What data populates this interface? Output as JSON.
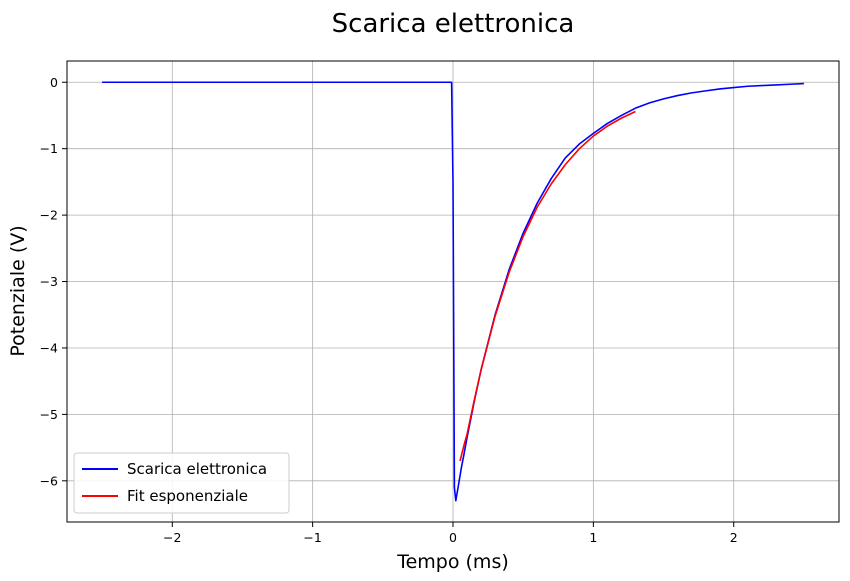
{
  "chart_data": {
    "type": "line",
    "title": "Scarica elettronica",
    "xlabel": "Tempo (ms)",
    "ylabel": "Potenziale (V)",
    "xlim": [
      -2.75,
      2.75
    ],
    "ylim": [
      -6.62,
      0.32
    ],
    "xticks": [
      -2,
      -1,
      0,
      1,
      2
    ],
    "xtick_labels": [
      "−2",
      "−1",
      "0",
      "1",
      "2"
    ],
    "yticks": [
      0,
      -1,
      -2,
      -3,
      -4,
      -5,
      -6
    ],
    "ytick_labels": [
      "0",
      "−1",
      "−2",
      "−3",
      "−4",
      "−5",
      "−6"
    ],
    "grid": true,
    "legend_position": "lower-left",
    "series": [
      {
        "name": "Scarica elettronica",
        "color": "#0000ff",
        "x": [
          -2.5,
          -2.0,
          -1.5,
          -1.0,
          -0.5,
          -0.1,
          -0.01,
          0.0,
          0.01,
          0.02,
          0.04,
          0.06,
          0.08,
          0.1,
          0.15,
          0.2,
          0.3,
          0.4,
          0.5,
          0.6,
          0.7,
          0.8,
          0.9,
          1.0,
          1.1,
          1.2,
          1.3,
          1.4,
          1.5,
          1.6,
          1.7,
          1.8,
          1.9,
          2.0,
          2.1,
          2.2,
          2.3,
          2.4,
          2.5
        ],
        "y": [
          0.0,
          0.0,
          0.0,
          0.0,
          0.0,
          0.0,
          0.0,
          -1.5,
          -6.1,
          -6.3,
          -6.05,
          -5.8,
          -5.58,
          -5.35,
          -4.82,
          -4.33,
          -3.5,
          -2.82,
          -2.27,
          -1.82,
          -1.45,
          -1.14,
          -0.93,
          -0.77,
          -0.62,
          -0.5,
          -0.39,
          -0.31,
          -0.25,
          -0.2,
          -0.16,
          -0.13,
          -0.1,
          -0.08,
          -0.06,
          -0.05,
          -0.04,
          -0.03,
          -0.02
        ]
      },
      {
        "name": "Fit esponenziale",
        "color": "#ff0000",
        "x": [
          0.05,
          0.08,
          0.1,
          0.15,
          0.2,
          0.3,
          0.4,
          0.5,
          0.6,
          0.7,
          0.8,
          0.9,
          1.0,
          1.1,
          1.2,
          1.3
        ],
        "y": [
          -5.7,
          -5.45,
          -5.3,
          -4.8,
          -4.33,
          -3.52,
          -2.86,
          -2.32,
          -1.88,
          -1.53,
          -1.24,
          -1.0,
          -0.81,
          -0.66,
          -0.54,
          -0.44
        ]
      }
    ]
  }
}
